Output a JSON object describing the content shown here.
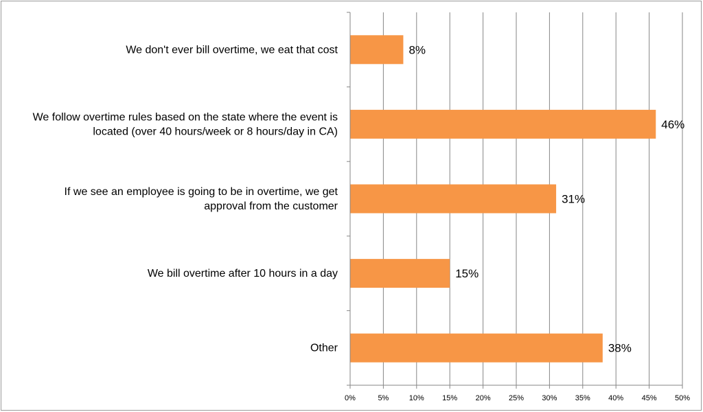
{
  "chart_data": {
    "type": "bar",
    "orientation": "horizontal",
    "title": "",
    "xlabel": "",
    "ylabel": "",
    "categories": [
      [
        "We don't ever bill overtime, we eat that cost"
      ],
      [
        "We follow overtime rules based on the state where the event is",
        "located (over 40 hours/week or 8 hours/day in CA)"
      ],
      [
        "If we see an employee is going to be in overtime, we get",
        "approval from the customer"
      ],
      [
        "We bill overtime after 10 hours in a day"
      ],
      [
        "Other"
      ]
    ],
    "values": [
      8,
      46,
      31,
      15,
      38
    ],
    "data_labels": [
      "8%",
      "46%",
      "31%",
      "15%",
      "38%"
    ],
    "xlim": [
      0,
      50
    ],
    "x_ticks": [
      0,
      5,
      10,
      15,
      20,
      25,
      30,
      35,
      40,
      45,
      50
    ],
    "x_tick_labels": [
      "0%",
      "5%",
      "10%",
      "15%",
      "20%",
      "25%",
      "30%",
      "35%",
      "40%",
      "45%",
      "50%"
    ],
    "grid": "vertical",
    "legend": "none",
    "bar_color": "#f79646",
    "grid_color": "#868686"
  }
}
